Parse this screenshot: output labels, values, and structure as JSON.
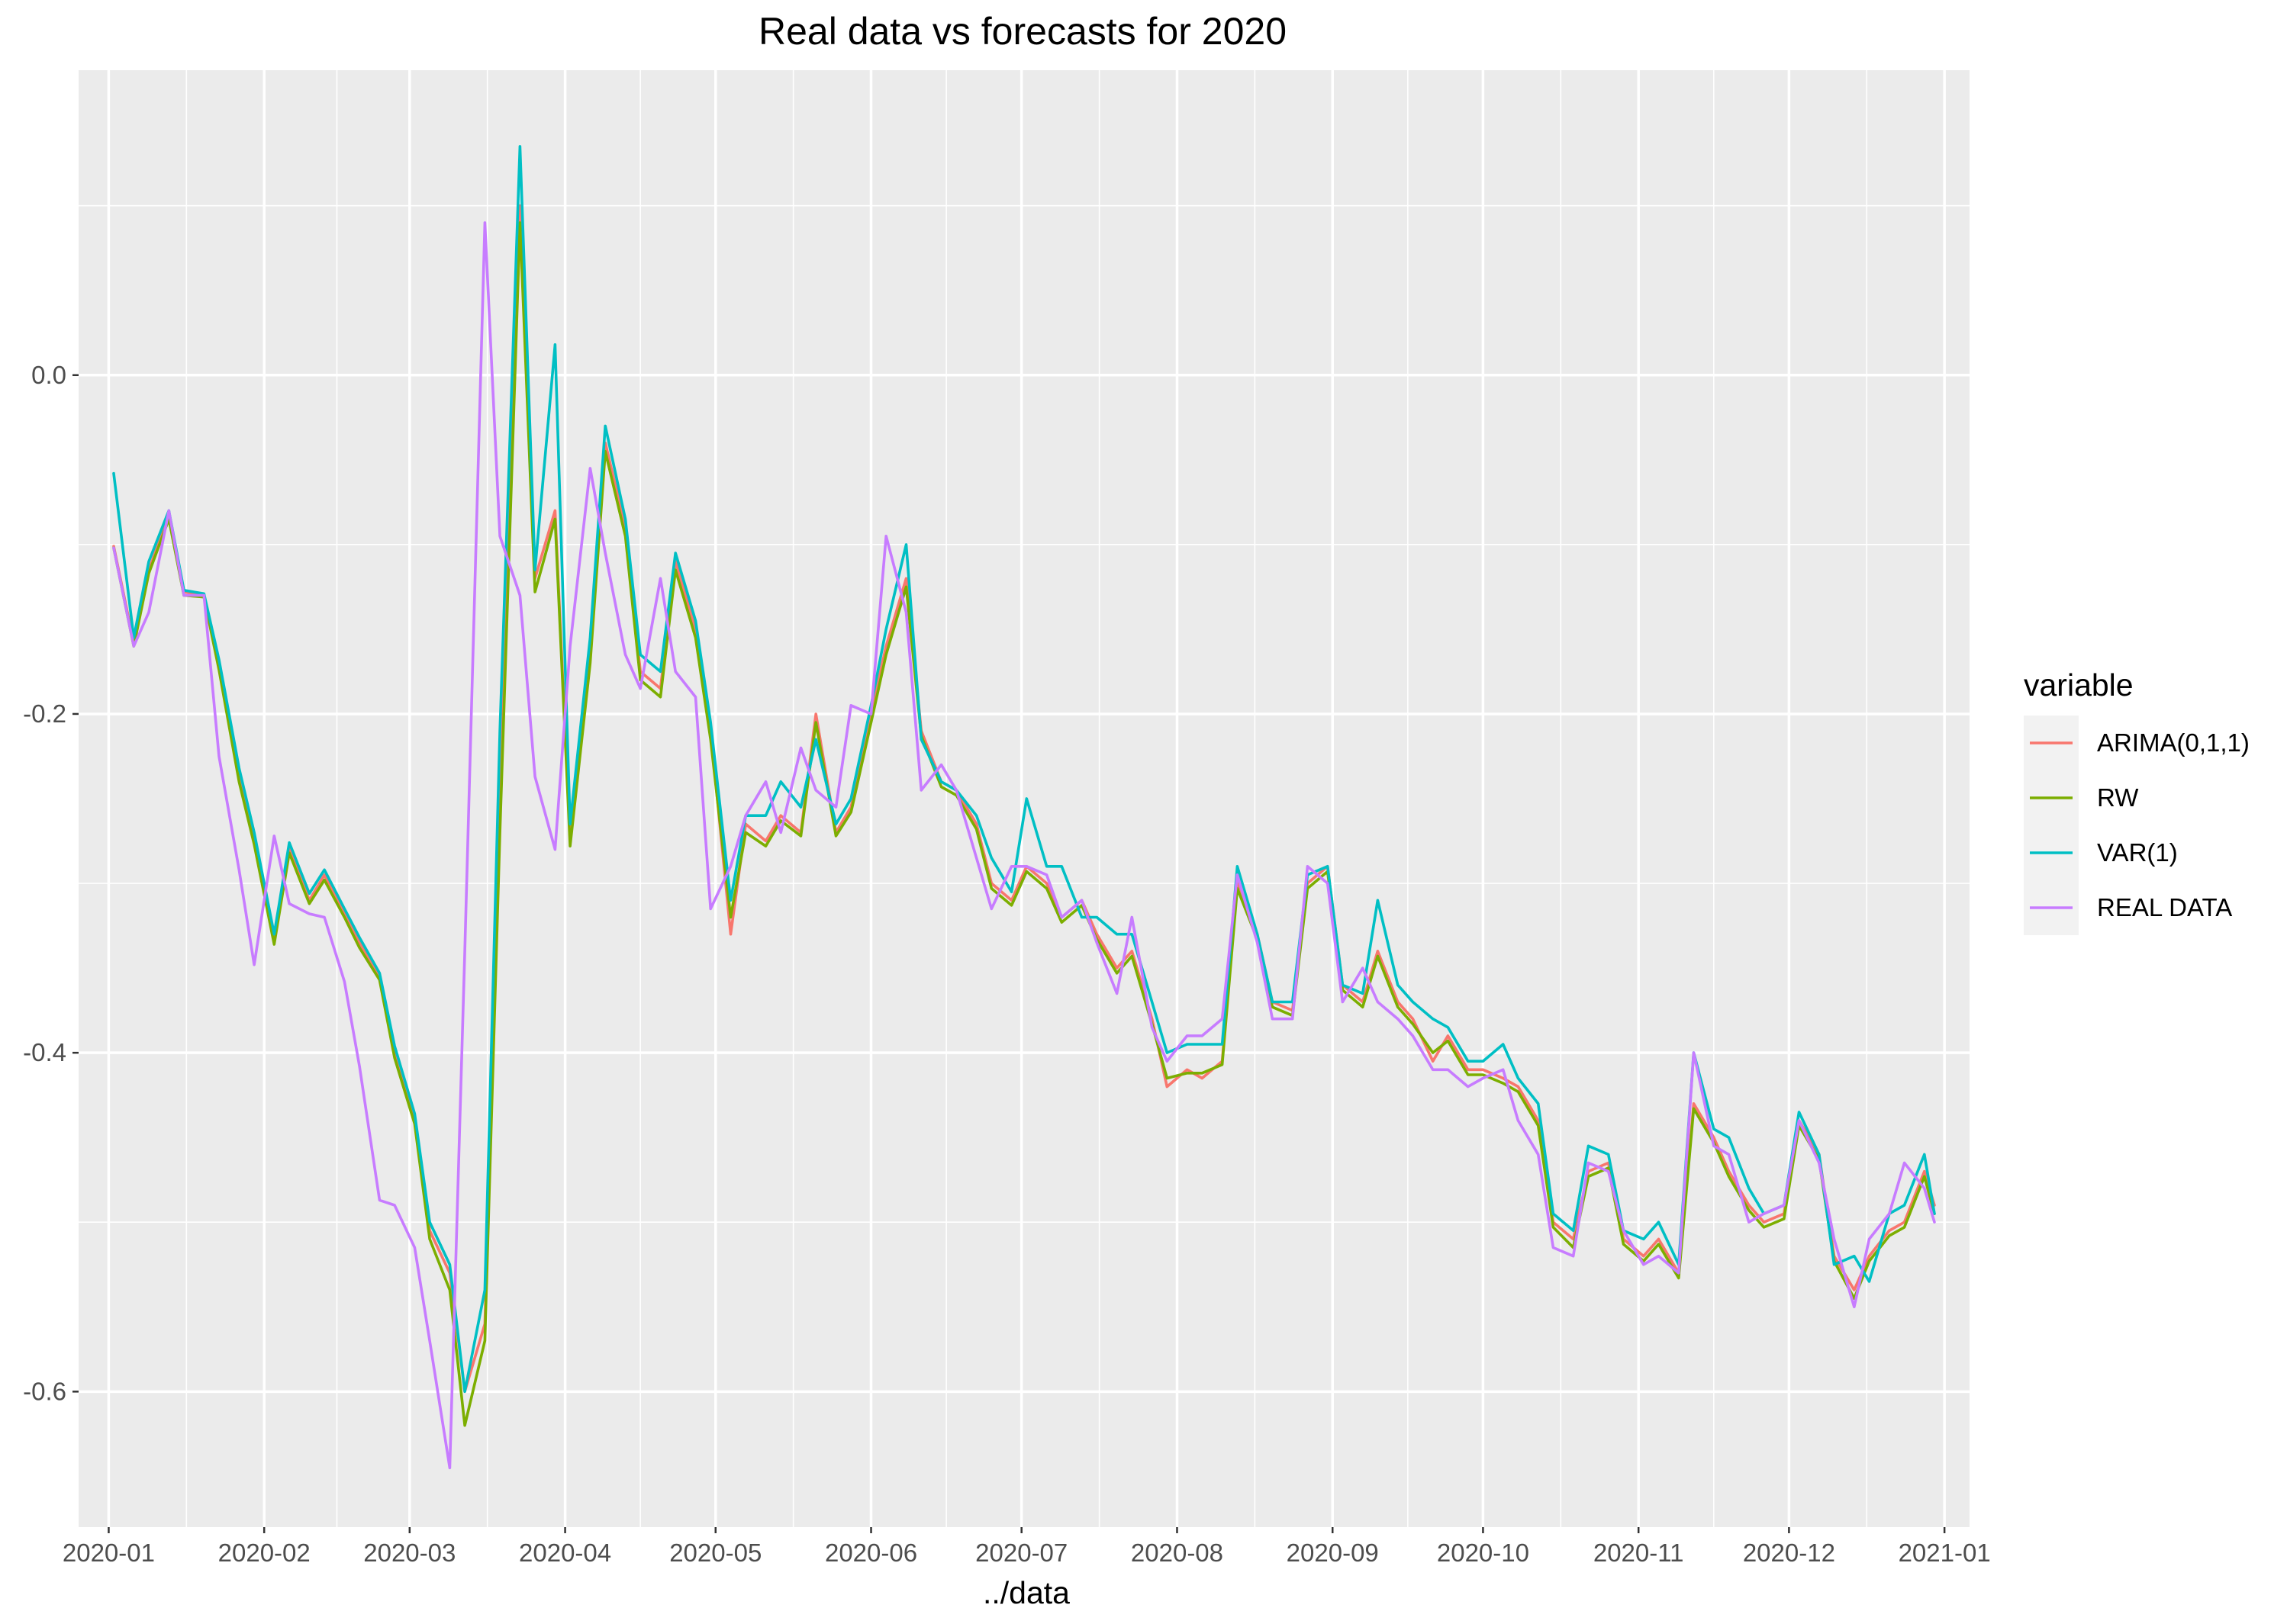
{
  "chart_data": {
    "type": "line",
    "title": "Real data vs forecasts for 2020",
    "xlabel": "../data",
    "ylabel": "",
    "x_ticks": [
      "2020-01",
      "2020-02",
      "2020-03",
      "2020-04",
      "2020-05",
      "2020-06",
      "2020-07",
      "2020-08",
      "2020-09",
      "2020-10",
      "2020-11",
      "2020-12",
      "2021-01"
    ],
    "y_ticks": [
      "0.0",
      "-0.2",
      "-0.4",
      "-0.6"
    ],
    "ylim": [
      -0.68,
      0.18
    ],
    "xlim": [
      "2019-12-26",
      "2021-01-06"
    ],
    "grid": true,
    "legend_title": "variable",
    "legend_position": "right",
    "dates": [
      "2020-01-02",
      "2020-01-06",
      "2020-01-09",
      "2020-01-13",
      "2020-01-16",
      "2020-01-20",
      "2020-01-23",
      "2020-01-27",
      "2020-01-30",
      "2020-02-03",
      "2020-02-06",
      "2020-02-10",
      "2020-02-13",
      "2020-02-17",
      "2020-02-20",
      "2020-02-24",
      "2020-02-27",
      "2020-03-02",
      "2020-03-05",
      "2020-03-09",
      "2020-03-12",
      "2020-03-16",
      "2020-03-19",
      "2020-03-23",
      "2020-03-26",
      "2020-03-30",
      "2020-04-02",
      "2020-04-06",
      "2020-04-09",
      "2020-04-13",
      "2020-04-16",
      "2020-04-20",
      "2020-04-23",
      "2020-04-27",
      "2020-04-30",
      "2020-05-04",
      "2020-05-07",
      "2020-05-11",
      "2020-05-14",
      "2020-05-18",
      "2020-05-21",
      "2020-05-25",
      "2020-05-28",
      "2020-06-01",
      "2020-06-04",
      "2020-06-08",
      "2020-06-11",
      "2020-06-15",
      "2020-06-18",
      "2020-06-22",
      "2020-06-25",
      "2020-06-29",
      "2020-07-02",
      "2020-07-06",
      "2020-07-09",
      "2020-07-13",
      "2020-07-16",
      "2020-07-20",
      "2020-07-23",
      "2020-07-27",
      "2020-07-30",
      "2020-08-03",
      "2020-08-06",
      "2020-08-10",
      "2020-08-13",
      "2020-08-17",
      "2020-08-20",
      "2020-08-24",
      "2020-08-27",
      "2020-08-31",
      "2020-09-03",
      "2020-09-07",
      "2020-09-10",
      "2020-09-14",
      "2020-09-17",
      "2020-09-21",
      "2020-09-24",
      "2020-09-28",
      "2020-10-01",
      "2020-10-05",
      "2020-10-08",
      "2020-10-12",
      "2020-10-15",
      "2020-10-19",
      "2020-10-22",
      "2020-10-26",
      "2020-10-29",
      "2020-11-02",
      "2020-11-05",
      "2020-11-09",
      "2020-11-12",
      "2020-11-16",
      "2020-11-19",
      "2020-11-23",
      "2020-11-26",
      "2020-11-30",
      "2020-12-03",
      "2020-12-07",
      "2020-12-10",
      "2020-12-14",
      "2020-12-17",
      "2020-12-21",
      "2020-12-24",
      "2020-12-28",
      "2020-12-30"
    ],
    "series": [
      {
        "name": "ARIMA(0,1,1)",
        "color": "#F8766D",
        "values": [
          -0.101,
          -0.158,
          -0.115,
          -0.083,
          -0.128,
          -0.13,
          -0.172,
          -0.236,
          -0.275,
          -0.333,
          -0.279,
          -0.31,
          -0.295,
          -0.318,
          -0.335,
          -0.356,
          -0.4,
          -0.44,
          -0.505,
          -0.53,
          -0.6,
          -0.56,
          -0.25,
          0.1,
          -0.12,
          -0.08,
          -0.275,
          -0.165,
          -0.04,
          -0.09,
          -0.175,
          -0.185,
          -0.11,
          -0.15,
          -0.21,
          -0.33,
          -0.265,
          -0.275,
          -0.26,
          -0.27,
          -0.2,
          -0.27,
          -0.255,
          -0.2,
          -0.16,
          -0.12,
          -0.21,
          -0.24,
          -0.245,
          -0.265,
          -0.3,
          -0.31,
          -0.29,
          -0.3,
          -0.32,
          -0.31,
          -0.33,
          -0.35,
          -0.34,
          -0.38,
          -0.42,
          -0.41,
          -0.415,
          -0.405,
          -0.3,
          -0.33,
          -0.37,
          -0.375,
          -0.3,
          -0.29,
          -0.36,
          -0.37,
          -0.34,
          -0.37,
          -0.38,
          -0.405,
          -0.39,
          -0.41,
          -0.41,
          -0.415,
          -0.42,
          -0.44,
          -0.5,
          -0.51,
          -0.47,
          -0.465,
          -0.51,
          -0.52,
          -0.51,
          -0.53,
          -0.43,
          -0.45,
          -0.47,
          -0.49,
          -0.5,
          -0.495,
          -0.44,
          -0.46,
          -0.52,
          -0.54,
          -0.52,
          -0.505,
          -0.5,
          -0.47,
          -0.49
        ]
      },
      {
        "name": "RW",
        "color": "#7CAE00",
        "values": [
          -0.102,
          -0.16,
          -0.117,
          -0.085,
          -0.13,
          -0.131,
          -0.174,
          -0.24,
          -0.277,
          -0.336,
          -0.282,
          -0.312,
          -0.298,
          -0.32,
          -0.338,
          -0.357,
          -0.403,
          -0.442,
          -0.51,
          -0.54,
          -0.62,
          -0.57,
          -0.27,
          0.09,
          -0.128,
          -0.085,
          -0.278,
          -0.17,
          -0.045,
          -0.095,
          -0.18,
          -0.19,
          -0.115,
          -0.155,
          -0.215,
          -0.32,
          -0.27,
          -0.278,
          -0.263,
          -0.272,
          -0.205,
          -0.272,
          -0.258,
          -0.205,
          -0.165,
          -0.125,
          -0.213,
          -0.243,
          -0.248,
          -0.268,
          -0.303,
          -0.313,
          -0.293,
          -0.303,
          -0.323,
          -0.313,
          -0.333,
          -0.353,
          -0.343,
          -0.383,
          -0.415,
          -0.412,
          -0.412,
          -0.407,
          -0.303,
          -0.333,
          -0.373,
          -0.378,
          -0.303,
          -0.293,
          -0.363,
          -0.373,
          -0.343,
          -0.373,
          -0.383,
          -0.4,
          -0.393,
          -0.413,
          -0.413,
          -0.418,
          -0.423,
          -0.443,
          -0.503,
          -0.515,
          -0.473,
          -0.468,
          -0.513,
          -0.523,
          -0.513,
          -0.533,
          -0.433,
          -0.453,
          -0.473,
          -0.493,
          -0.503,
          -0.498,
          -0.443,
          -0.463,
          -0.523,
          -0.545,
          -0.523,
          -0.508,
          -0.503,
          -0.473,
          -0.495
        ]
      },
      {
        "name": "VAR(1)",
        "color": "#00BFC4",
        "values": [
          -0.058,
          -0.155,
          -0.11,
          -0.08,
          -0.127,
          -0.129,
          -0.168,
          -0.232,
          -0.27,
          -0.33,
          -0.276,
          -0.306,
          -0.292,
          -0.315,
          -0.332,
          -0.353,
          -0.396,
          -0.436,
          -0.5,
          -0.525,
          -0.6,
          -0.54,
          -0.21,
          0.135,
          -0.115,
          0.018,
          -0.265,
          -0.155,
          -0.03,
          -0.085,
          -0.165,
          -0.175,
          -0.105,
          -0.145,
          -0.205,
          -0.31,
          -0.26,
          -0.26,
          -0.24,
          -0.255,
          -0.215,
          -0.265,
          -0.25,
          -0.195,
          -0.15,
          -0.1,
          -0.215,
          -0.24,
          -0.245,
          -0.26,
          -0.285,
          -0.305,
          -0.25,
          -0.29,
          -0.29,
          -0.32,
          -0.32,
          -0.33,
          -0.33,
          -0.37,
          -0.4,
          -0.395,
          -0.395,
          -0.395,
          -0.29,
          -0.33,
          -0.37,
          -0.37,
          -0.295,
          -0.29,
          -0.36,
          -0.365,
          -0.31,
          -0.36,
          -0.37,
          -0.38,
          -0.385,
          -0.405,
          -0.405,
          -0.395,
          -0.415,
          -0.43,
          -0.495,
          -0.505,
          -0.455,
          -0.46,
          -0.505,
          -0.51,
          -0.5,
          -0.525,
          -0.4,
          -0.445,
          -0.45,
          -0.48,
          -0.495,
          -0.49,
          -0.435,
          -0.46,
          -0.525,
          -0.52,
          -0.535,
          -0.495,
          -0.49,
          -0.46,
          -0.495
        ]
      },
      {
        "name": "REAL DATA",
        "color": "#C77CFF",
        "values": [
          -0.102,
          -0.16,
          -0.14,
          -0.08,
          -0.13,
          -0.13,
          -0.225,
          -0.292,
          -0.348,
          -0.272,
          -0.312,
          -0.318,
          -0.32,
          -0.358,
          -0.408,
          -0.487,
          -0.49,
          -0.515,
          -0.57,
          -0.645,
          -0.34,
          0.09,
          -0.095,
          -0.13,
          -0.237,
          -0.28,
          -0.16,
          -0.055,
          -0.105,
          -0.165,
          -0.185,
          -0.12,
          -0.175,
          -0.19,
          -0.315,
          -0.29,
          -0.26,
          -0.24,
          -0.27,
          -0.22,
          -0.245,
          -0.255,
          -0.195,
          -0.2,
          -0.095,
          -0.14,
          -0.245,
          -0.23,
          -0.245,
          -0.285,
          -0.315,
          -0.29,
          -0.29,
          -0.295,
          -0.32,
          -0.31,
          -0.335,
          -0.365,
          -0.32,
          -0.385,
          -0.405,
          -0.39,
          -0.39,
          -0.38,
          -0.295,
          -0.335,
          -0.38,
          -0.38,
          -0.29,
          -0.3,
          -0.37,
          -0.35,
          -0.37,
          -0.38,
          -0.39,
          -0.41,
          -0.41,
          -0.42,
          -0.415,
          -0.41,
          -0.44,
          -0.46,
          -0.515,
          -0.52,
          -0.465,
          -0.47,
          -0.505,
          -0.525,
          -0.52,
          -0.53,
          -0.4,
          -0.455,
          -0.46,
          -0.5,
          -0.495,
          -0.49,
          -0.44,
          -0.465,
          -0.51,
          -0.55,
          -0.51,
          -0.495,
          -0.465,
          -0.48,
          -0.5
        ]
      }
    ]
  }
}
